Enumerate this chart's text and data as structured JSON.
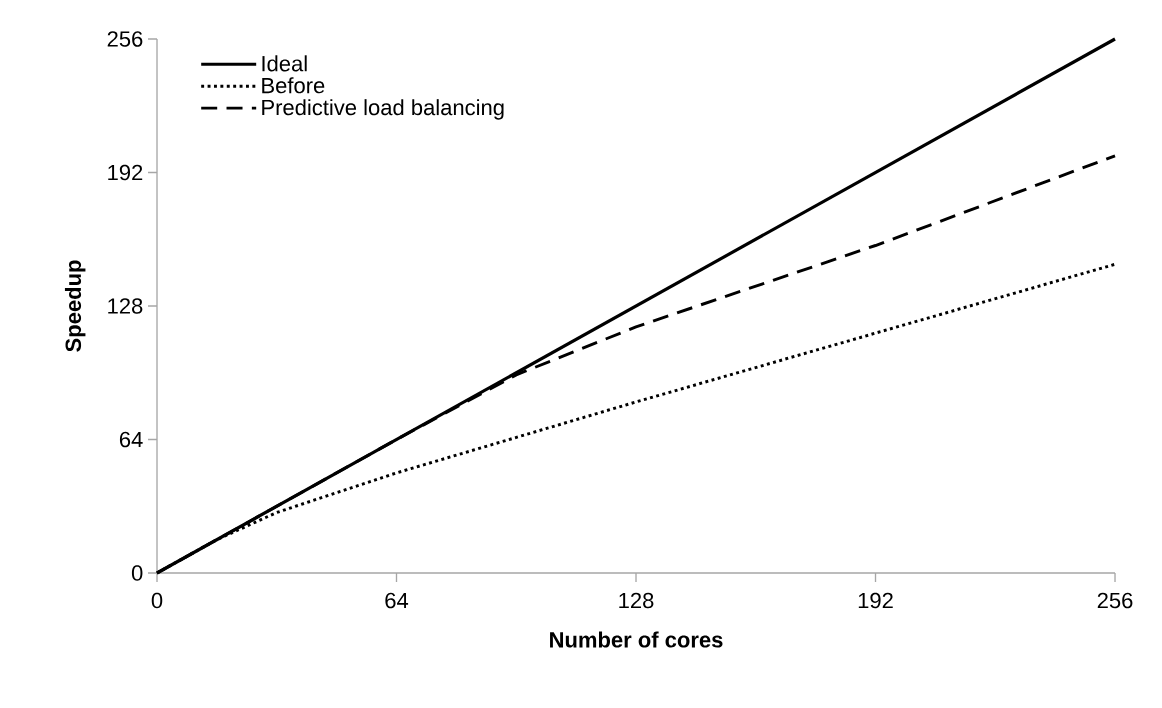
{
  "chart_data": {
    "type": "line",
    "xlabel": "Number of cores",
    "ylabel": "Speedup",
    "xlim": [
      0,
      256
    ],
    "ylim": [
      0,
      256
    ],
    "xticks": [
      0,
      64,
      128,
      192,
      256
    ],
    "yticks": [
      0,
      64,
      128,
      192,
      256
    ],
    "grid": false,
    "legend": "top left",
    "marker": "none",
    "series": [
      {
        "name": "Ideal",
        "color": "#000000",
        "line_style": "solid",
        "x": [
          0,
          256
        ],
        "values": [
          0,
          256
        ]
      },
      {
        "name": "Before",
        "color": "#000000",
        "line_style": "dotted",
        "x": [
          0,
          16,
          32,
          64,
          128,
          256
        ],
        "values": [
          0,
          16,
          29,
          48,
          82,
          148
        ]
      },
      {
        "name": "Predictive load balancing",
        "color": "#000000",
        "line_style": "dashed",
        "x": [
          0,
          64,
          96,
          128,
          192,
          256
        ],
        "values": [
          0,
          64,
          95,
          118,
          157,
          200
        ]
      }
    ]
  }
}
